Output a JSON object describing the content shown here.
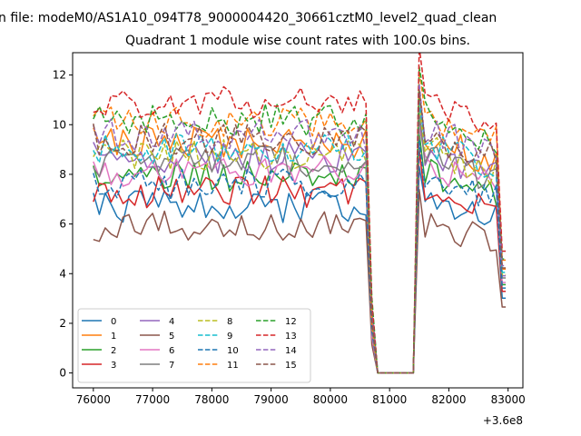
{
  "figure": {
    "suptitle": "n file: modeM0/AS1A10_094T78_9000004420_30661cztM0_level2_quad_clean"
  },
  "chart_data": {
    "type": "line",
    "title": "Quadrant 1 module wise count rates with 100.0s bins.",
    "xlabel": "",
    "ylabel": "",
    "x_offset_label": "+3.6e8",
    "xlim": [
      75650,
      83250
    ],
    "ylim": [
      -0.6,
      12.9
    ],
    "xticks": [
      76000,
      77000,
      78000,
      79000,
      80000,
      81000,
      82000,
      83000
    ],
    "xtick_labels": [
      "76000",
      "77000",
      "78000",
      "79000",
      "80000",
      "81000",
      "82000",
      "83000"
    ],
    "yticks": [
      0,
      2,
      4,
      6,
      8,
      10,
      12
    ],
    "ytick_labels": [
      "0",
      "2",
      "4",
      "6",
      "8",
      "10",
      "12"
    ],
    "grid": false,
    "legend": {
      "position": "lower-left",
      "columns": 4
    },
    "x_range": {
      "start": 76000,
      "end": 82960,
      "step": 100
    },
    "series": [
      {
        "name": "0",
        "color": "#1f77b4",
        "dash": "solid",
        "level": 6.7
      },
      {
        "name": "1",
        "color": "#ff7f0e",
        "dash": "solid",
        "level": 9.3
      },
      {
        "name": "2",
        "color": "#2ca02c",
        "dash": "solid",
        "level": 7.9
      },
      {
        "name": "3",
        "color": "#d62728",
        "dash": "solid",
        "level": 7.3
      },
      {
        "name": "4",
        "color": "#9467bd",
        "dash": "solid",
        "level": 8.7
      },
      {
        "name": "5",
        "color": "#8c564b",
        "dash": "solid",
        "level": 5.9
      },
      {
        "name": "6",
        "color": "#e377c2",
        "dash": "solid",
        "level": 8.1
      },
      {
        "name": "7",
        "color": "#7f7f7f",
        "dash": "solid",
        "level": 8.5
      },
      {
        "name": "8",
        "color": "#bcbd22",
        "dash": "dashed",
        "level": 8.8
      },
      {
        "name": "9",
        "color": "#17becf",
        "dash": "dashed",
        "level": 9.0
      },
      {
        "name": "10",
        "color": "#1f77b4",
        "dash": "dashed",
        "level": 7.6
      },
      {
        "name": "11",
        "color": "#ff7f0e",
        "dash": "dashed",
        "level": 10.1
      },
      {
        "name": "12",
        "color": "#2ca02c",
        "dash": "dashed",
        "level": 10.2
      },
      {
        "name": "13",
        "color": "#d62728",
        "dash": "dashed",
        "level": 10.9
      },
      {
        "name": "14",
        "color": "#9467bd",
        "dash": "dashed",
        "level": 9.6
      },
      {
        "name": "15",
        "color": "#8c564b",
        "dash": "dashed",
        "level": 9.4
      }
    ]
  }
}
